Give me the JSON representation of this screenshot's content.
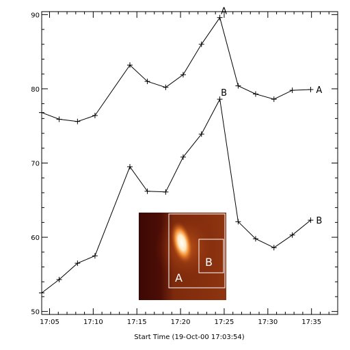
{
  "chart_data": {
    "type": "line",
    "xlabel": "Start Time (19-Oct-00 17:03:54)",
    "ylabel": "",
    "x_ticks": [
      "17:05",
      "17:10",
      "17:15",
      "17:20",
      "17:25",
      "17:30",
      "17:35"
    ],
    "y_ticks": [
      "50",
      "60",
      "70",
      "80",
      "90"
    ],
    "xlim_minutes_after_17_00": [
      4.1,
      38.0
    ],
    "ylim": [
      49.6,
      90.4
    ],
    "grid": false,
    "x_minutes_after_17_00": [
      4.1,
      6.1,
      8.2,
      10.2,
      14.2,
      16.2,
      18.3,
      20.3,
      22.4,
      24.5,
      26.6,
      28.6,
      30.7,
      32.8,
      34.9
    ],
    "series": [
      {
        "name": "A",
        "values": [
          76.8,
          75.9,
          75.6,
          76.4,
          83.2,
          81.0,
          80.2,
          81.9,
          86.0,
          89.6,
          80.4,
          79.3,
          78.6,
          79.8,
          79.9
        ],
        "peak_label": "A",
        "end_label": "A"
      },
      {
        "name": "B",
        "values": [
          52.5,
          54.3,
          56.5,
          57.5,
          69.5,
          66.2,
          66.1,
          70.8,
          73.9,
          78.6,
          62.1,
          59.8,
          58.6,
          60.3,
          62.3
        ],
        "peak_label": "B",
        "end_label": "B"
      }
    ],
    "inset": {
      "box_labels": [
        "A",
        "B"
      ],
      "colors": {
        "background": "#4a0c06",
        "mid": "#9a3810",
        "hot": "#ffffff",
        "box": "#ffffff"
      }
    }
  }
}
